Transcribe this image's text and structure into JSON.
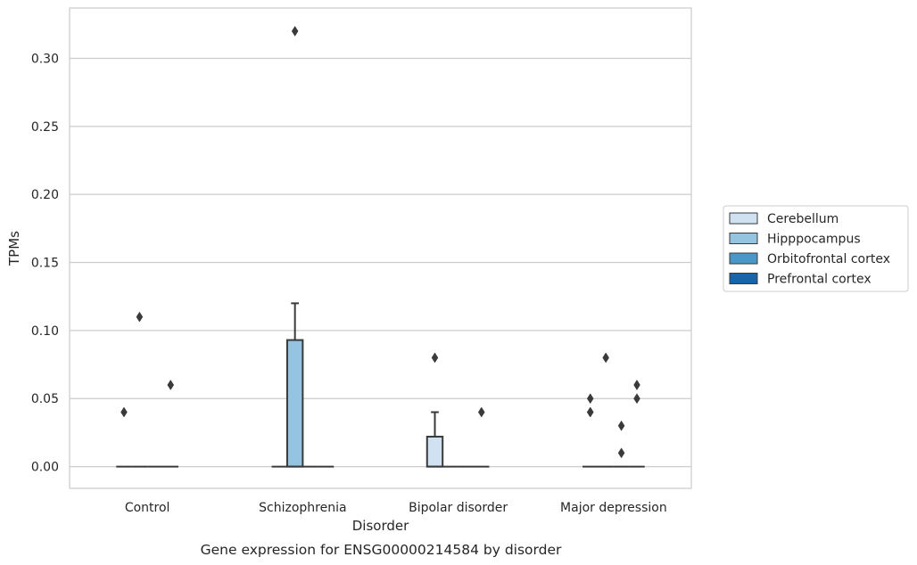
{
  "chart_data": {
    "type": "box",
    "caption": "Gene expression for ENSG00000214584 by disorder",
    "xlabel": "Disorder",
    "ylabel": "TPMs",
    "ylim": [
      -0.016,
      0.337
    ],
    "yticks": [
      "0.00",
      "0.05",
      "0.10",
      "0.15",
      "0.20",
      "0.25",
      "0.30"
    ],
    "ytick_values": [
      0,
      0.05,
      0.1,
      0.15,
      0.2,
      0.25,
      0.3
    ],
    "grid": true,
    "legend_position": "right",
    "categories": [
      "Control",
      "Schizophrenia",
      "Bipolar disorder",
      "Major depression"
    ],
    "series": [
      {
        "name": "Cerebellum",
        "color": "#d0e1f2",
        "boxes": [
          {
            "q1": 0,
            "median": 0,
            "q3": 0,
            "whisker_low": 0,
            "whisker_high": 0,
            "outliers": [
              0.04
            ]
          },
          {
            "q1": 0,
            "median": 0,
            "q3": 0,
            "whisker_low": 0,
            "whisker_high": 0,
            "outliers": []
          },
          {
            "q1": 0,
            "median": 0,
            "q3": 0.022,
            "whisker_low": 0,
            "whisker_high": 0.04,
            "outliers": [
              0.08
            ]
          },
          {
            "q1": 0,
            "median": 0,
            "q3": 0,
            "whisker_low": 0,
            "whisker_high": 0,
            "outliers": [
              0.04,
              0.04,
              0.05
            ]
          }
        ]
      },
      {
        "name": "Hipppocampus",
        "color": "#94c4df",
        "boxes": [
          {
            "q1": 0,
            "median": 0,
            "q3": 0,
            "whisker_low": 0,
            "whisker_high": 0,
            "outliers": [
              0.11
            ]
          },
          {
            "q1": 0,
            "median": 0,
            "q3": 0.093,
            "whisker_low": 0,
            "whisker_high": 0.12,
            "outliers": [
              0.32
            ]
          },
          {
            "q1": 0,
            "median": 0,
            "q3": 0,
            "whisker_low": 0,
            "whisker_high": 0,
            "outliers": []
          },
          {
            "q1": 0,
            "median": 0,
            "q3": 0,
            "whisker_low": 0,
            "whisker_high": 0,
            "outliers": [
              0.08
            ]
          }
        ]
      },
      {
        "name": "Orbitofrontal cortex",
        "color": "#4a98c9",
        "boxes": [
          {
            "q1": 0,
            "median": 0,
            "q3": 0,
            "whisker_low": 0,
            "whisker_high": 0,
            "outliers": []
          },
          {
            "q1": 0,
            "median": 0,
            "q3": 0,
            "whisker_low": 0,
            "whisker_high": 0,
            "outliers": []
          },
          {
            "q1": 0,
            "median": 0,
            "q3": 0,
            "whisker_low": 0,
            "whisker_high": 0,
            "outliers": []
          },
          {
            "q1": 0,
            "median": 0,
            "q3": 0,
            "whisker_low": 0,
            "whisker_high": 0,
            "outliers": [
              0.01,
              0.03
            ]
          }
        ]
      },
      {
        "name": "Prefrontal cortex",
        "color": "#1764ab",
        "boxes": [
          {
            "q1": 0,
            "median": 0,
            "q3": 0,
            "whisker_low": 0,
            "whisker_high": 0,
            "outliers": [
              0.06
            ]
          },
          {
            "q1": 0,
            "median": 0,
            "q3": 0,
            "whisker_low": 0,
            "whisker_high": 0,
            "outliers": []
          },
          {
            "q1": 0,
            "median": 0,
            "q3": 0,
            "whisker_low": 0,
            "whisker_high": 0,
            "outliers": [
              0.04
            ]
          },
          {
            "q1": 0,
            "median": 0,
            "q3": 0,
            "whisker_low": 0,
            "whisker_high": 0,
            "outliers": [
              0.05,
              0.06
            ]
          }
        ]
      }
    ]
  }
}
